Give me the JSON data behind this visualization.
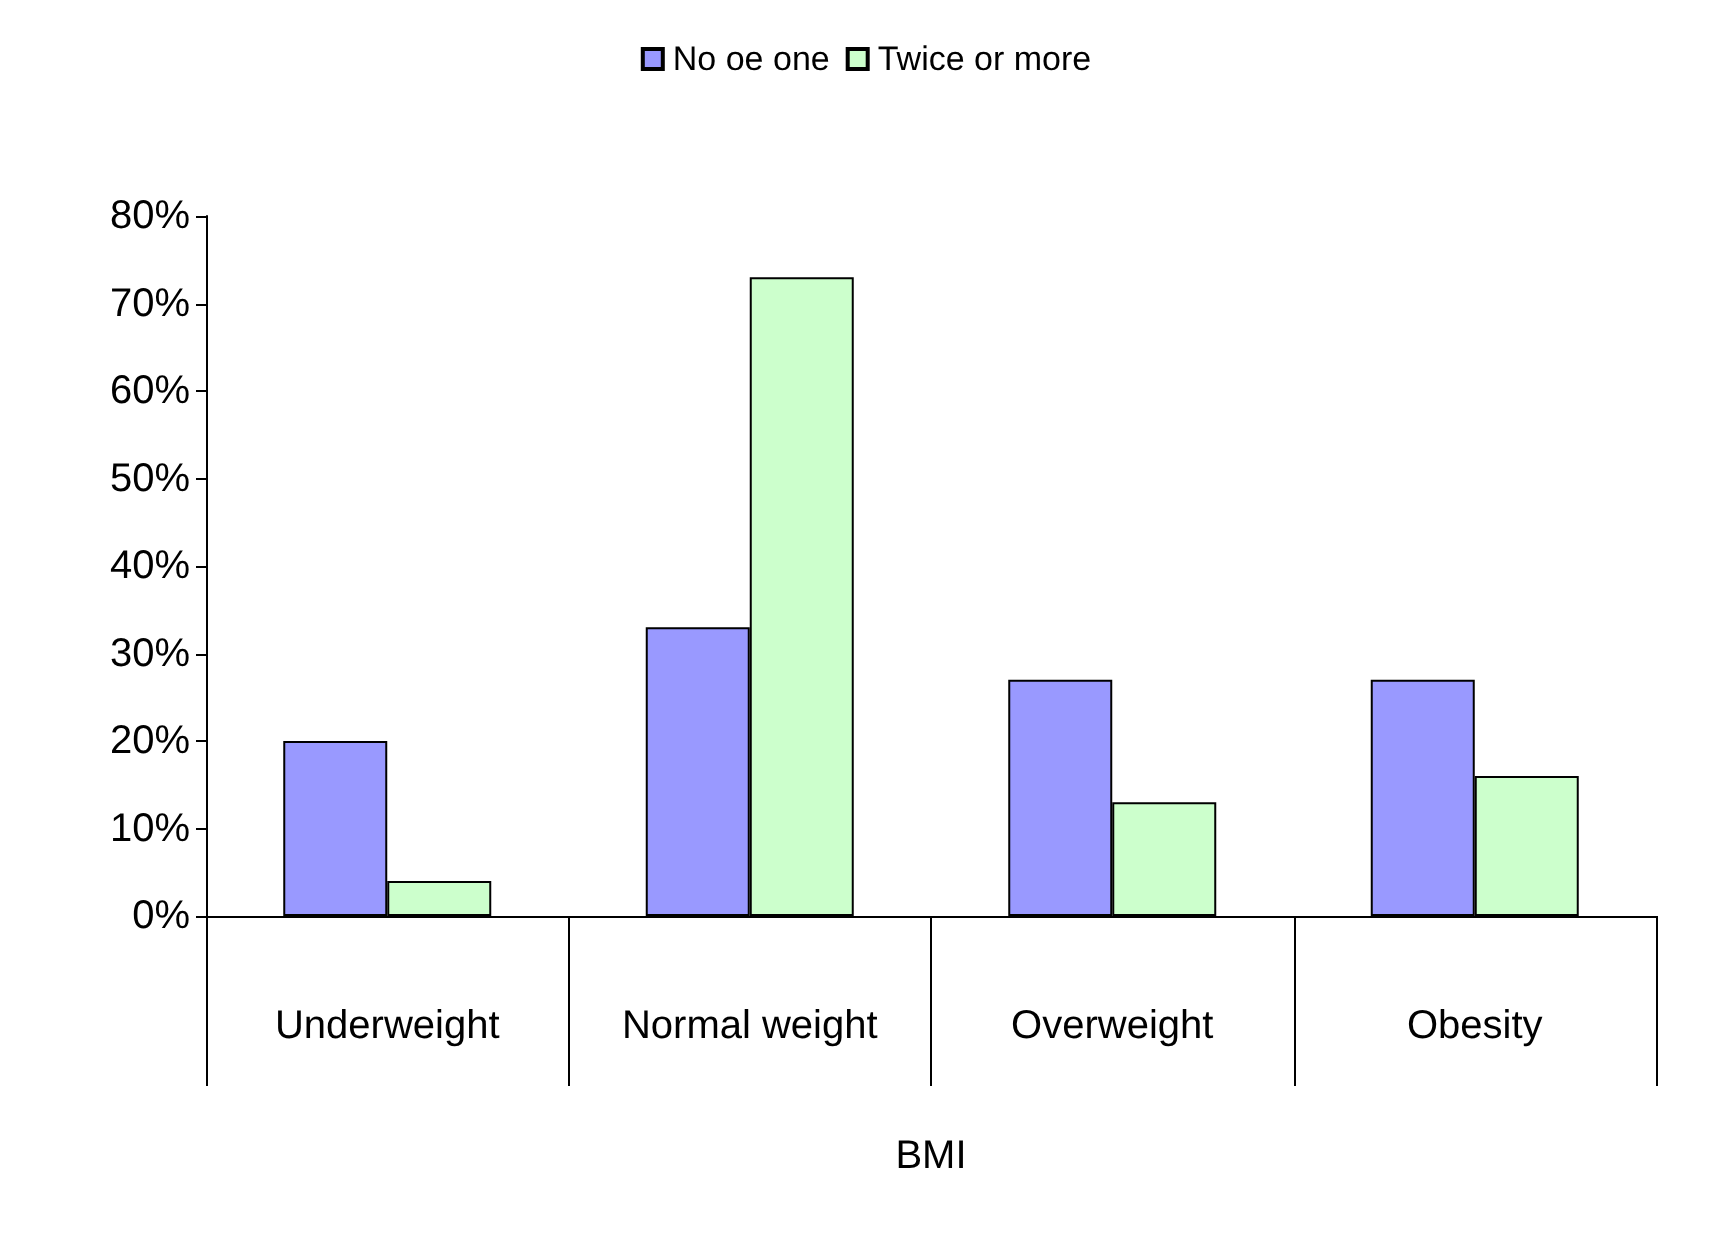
{
  "chart_data": {
    "type": "bar",
    "xlabel": "BMI",
    "categories": [
      "Underweight",
      "Normal weight",
      "Overweight",
      "Obesity"
    ],
    "series": [
      {
        "name": "No oe one",
        "color": "#9999ff",
        "values": [
          20,
          33,
          27,
          27
        ]
      },
      {
        "name": "Twice or more",
        "color": "#ccffcc",
        "values": [
          4,
          73,
          13,
          16
        ]
      }
    ],
    "ylim": [
      0,
      80
    ],
    "yticks": [
      {
        "value": 0,
        "label": "0%"
      },
      {
        "value": 10,
        "label": "10%"
      },
      {
        "value": 20,
        "label": "20%"
      },
      {
        "value": 30,
        "label": "30%"
      },
      {
        "value": 40,
        "label": "40%"
      },
      {
        "value": 50,
        "label": "50%"
      },
      {
        "value": 60,
        "label": "60%"
      },
      {
        "value": 70,
        "label": "70%"
      },
      {
        "value": 80,
        "label": "80%"
      }
    ],
    "grid": false,
    "legend": "top"
  }
}
